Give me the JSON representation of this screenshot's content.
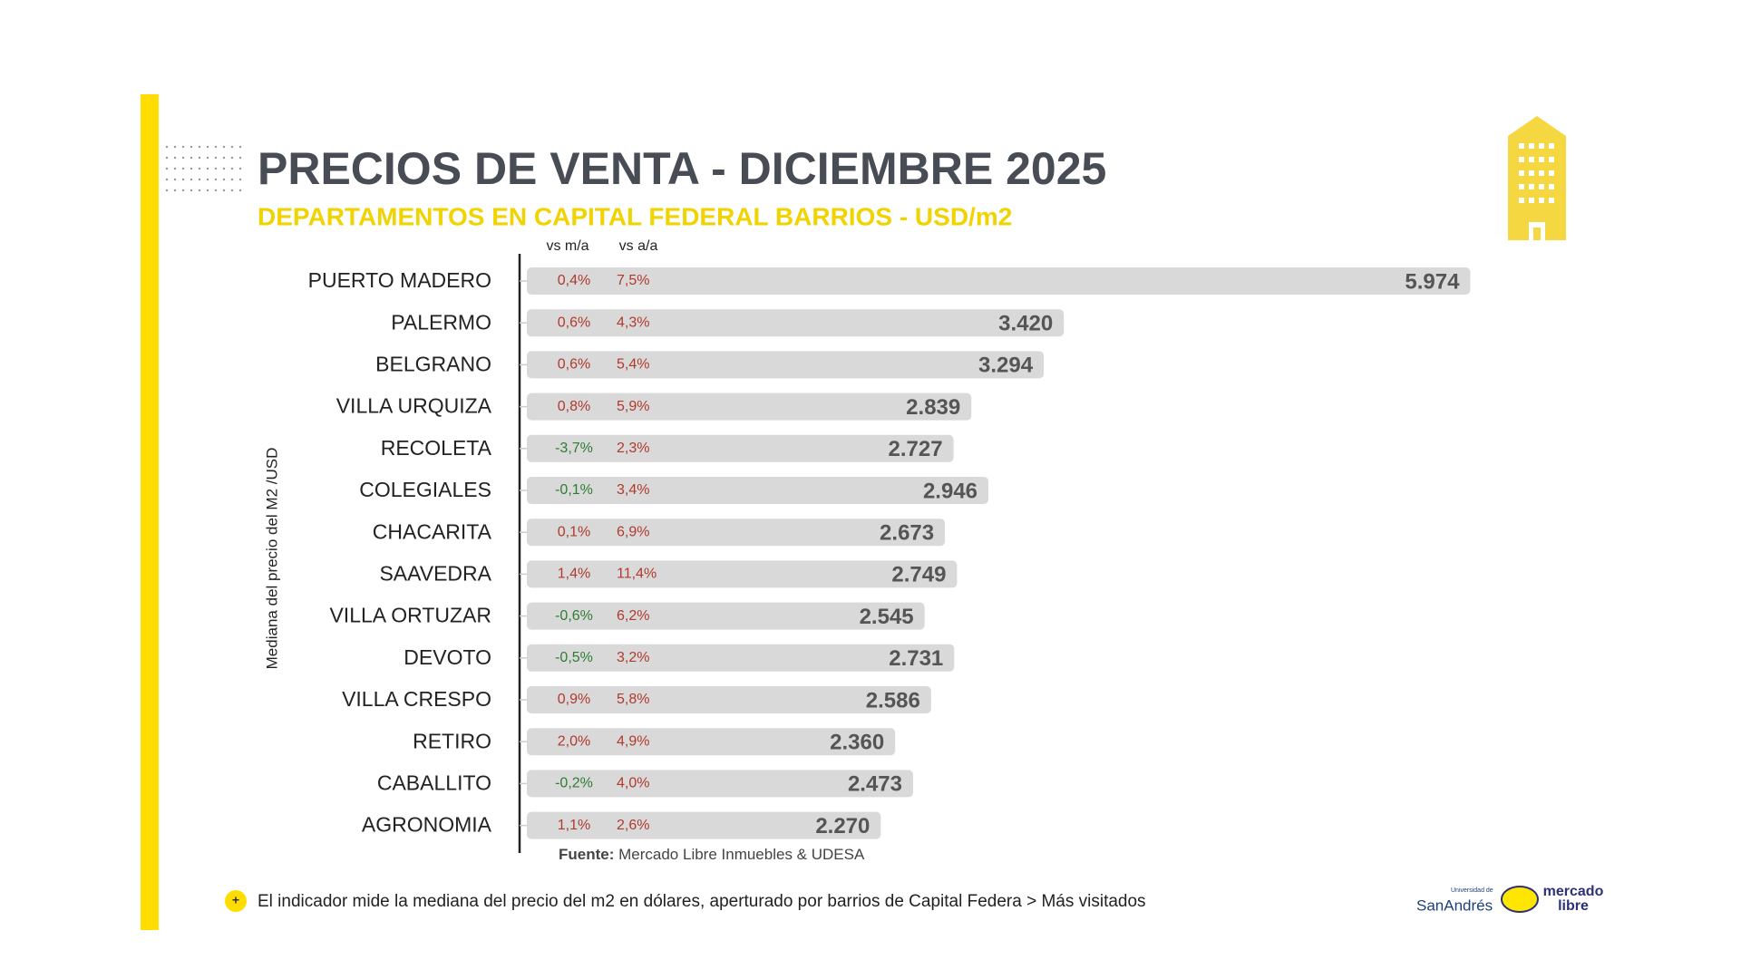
{
  "chart_data": {
    "type": "bar",
    "orientation": "horizontal",
    "title": "PRECIOS DE VENTA -  DICIEMBRE 2025",
    "subtitle": "DEPARTAMENTOS EN CAPITAL FEDERAL BARRIOS - USD/m2",
    "y_label": "Mediana del precio del M2 /USD",
    "categories": [
      "PUERTO MADERO",
      "PALERMO",
      "BELGRANO",
      "VILLA URQUIZA",
      "RECOLETA",
      "COLEGIALES",
      "CHACARITA",
      "SAAVEDRA",
      "VILLA ORTUZAR",
      "DEVOTO",
      "VILLA CRESPO",
      "RETIRO",
      "CABALLITO",
      "AGRONOMIA"
    ],
    "values": [
      5974,
      3420,
      3294,
      2839,
      2727,
      2946,
      2673,
      2749,
      2545,
      2731,
      2586,
      2360,
      2473,
      2270
    ],
    "value_labels": [
      "5.974",
      "3.420",
      "3.294",
      "2.839",
      "2.727",
      "2.946",
      "2.673",
      "2.749",
      "2.545",
      "2.731",
      "2.586",
      "2.360",
      "2.473",
      "2.270"
    ],
    "color": "#d9d9d9",
    "columns": [
      {
        "header": "vs m/a",
        "values": [
          0.4,
          0.6,
          0.6,
          0.8,
          -3.7,
          -0.1,
          0.1,
          1.4,
          -0.6,
          -0.5,
          0.9,
          2.0,
          -0.2,
          1.1
        ],
        "value_labels": [
          "0,4%",
          "0,6%",
          "0,6%",
          "0,8%",
          "-3,7%",
          "-0,1%",
          "0,1%",
          "1,4%",
          "-0,6%",
          "-0,5%",
          "0,9%",
          "2,0%",
          "-0,2%",
          "1,1%"
        ]
      },
      {
        "header": "vs a/a",
        "values": [
          7.5,
          4.3,
          5.4,
          5.9,
          2.3,
          3.4,
          6.9,
          11.4,
          6.2,
          3.2,
          5.8,
          4.9,
          4.0,
          2.6
        ],
        "value_labels": [
          "7,5%",
          "4,3%",
          "5,4%",
          "5,9%",
          "2,3%",
          "3,4%",
          "6,9%",
          "11,4%",
          "6,2%",
          "3,2%",
          "5,8%",
          "4,9%",
          "4,0%",
          "2,6%"
        ]
      }
    ],
    "positive_color": "#b03a2e",
    "negative_color": "#2e7d32",
    "source_label": "Fuente:",
    "source": "Mercado Libre Inmuebles & UDESA",
    "footnote": "El indicador mide la mediana del precio del m2 en dólares, aperturado por barrios de Capital Federa > Más visitados",
    "logos": {
      "udesa_small": "Universidad de",
      "udesa": "SanAndrés",
      "ml_1": "mercado",
      "ml_2": "libre"
    }
  }
}
